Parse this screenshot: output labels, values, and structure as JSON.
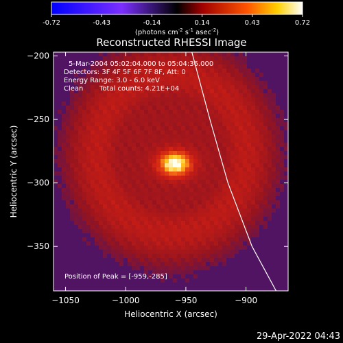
{
  "colorbar": {
    "ticks": [
      "-0.72",
      "-0.43",
      "-0.14",
      "0.14",
      "0.43",
      "0.72"
    ],
    "unit_label_prefix": "(photons cm",
    "unit_exp1": "-2",
    "unit_mid1": " s",
    "unit_exp2": "-1",
    "unit_mid2": " asec",
    "unit_exp3": "-2",
    "unit_suffix": ")",
    "range": [
      -0.72,
      0.72
    ]
  },
  "annotations": {
    "time_range": "5-Mar-2004 05:02:04.000 to 05:04:36.000",
    "detectors": "Detectors: 3F 4F 5F 6F 7F 8F, Att: 0",
    "energy": "Energy Range: 3.0 - 6.0 keV",
    "method": "Clean",
    "counts": "Total counts: 4.21E+04",
    "peak": "Position of Peak = [-959,-285]"
  },
  "footer": {
    "timestamp": "29-Apr-2022 04:43"
  },
  "chart_data": {
    "type": "heatmap",
    "title": "Reconstructed RHESSI Image",
    "xlabel": "Heliocentric X (arcsec)",
    "ylabel": "Heliocentric Y (arcsec)",
    "xlim": [
      -1060,
      -865
    ],
    "ylim": [
      -385,
      -197
    ],
    "x_ticks": [
      {
        "value": -1050,
        "label": "−1050"
      },
      {
        "value": -1000,
        "label": "−1000"
      },
      {
        "value": -950,
        "label": "−950"
      },
      {
        "value": -900,
        "label": "−900"
      }
    ],
    "y_ticks": [
      {
        "value": -200,
        "label": "−200"
      },
      {
        "value": -250,
        "label": "−250"
      },
      {
        "value": -300,
        "label": "−300"
      },
      {
        "value": -350,
        "label": "−350"
      }
    ],
    "peak": {
      "x": -959,
      "y": -285
    },
    "limb_line": [
      {
        "x": -945,
        "y": -197
      },
      {
        "x": -930,
        "y": -250
      },
      {
        "x": -915,
        "y": -300
      },
      {
        "x": -895,
        "y": -350
      },
      {
        "x": -875,
        "y": -385
      }
    ],
    "ring": {
      "cx": -962,
      "cy": -277,
      "r": 62,
      "width": 30
    },
    "colormap": "hot-cold"
  }
}
